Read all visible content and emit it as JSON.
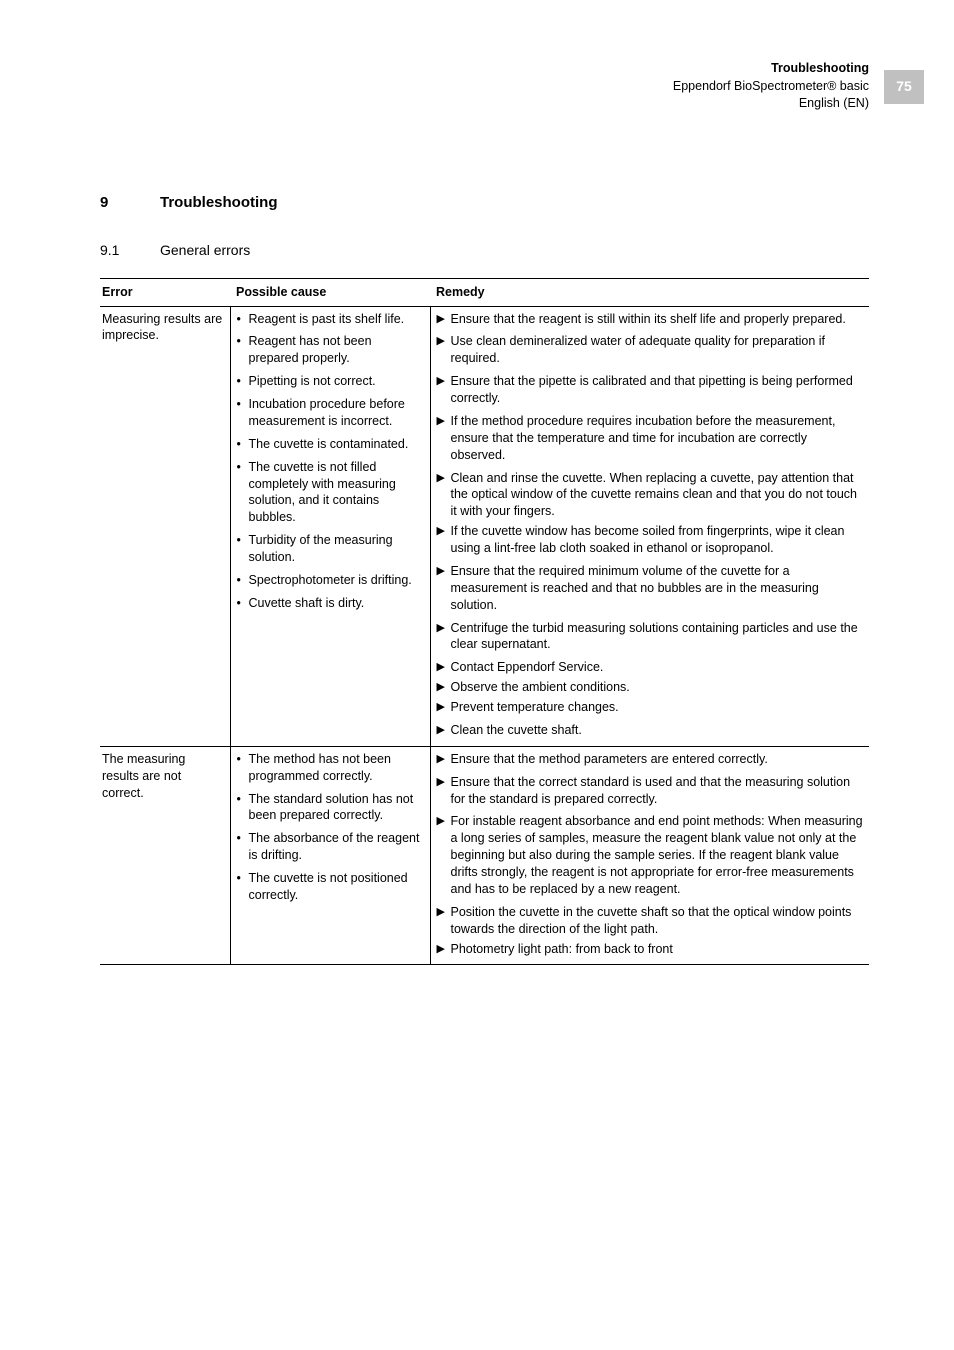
{
  "header": {
    "title": "Troubleshooting",
    "product": "Eppendorf BioSpectrometer® basic",
    "language": "English (EN)",
    "page_number": "75"
  },
  "section": {
    "number": "9",
    "title": "Troubleshooting"
  },
  "subsection": {
    "number": "9.1",
    "title": "General errors"
  },
  "table": {
    "headers": {
      "error": "Error",
      "cause": "Possible cause",
      "remedy": "Remedy"
    },
    "rows": [
      {
        "error": "Measuring results are imprecise.",
        "groups": [
          {
            "cause": "Reagent is past its shelf life.",
            "remedies": [
              "Ensure that the reagent is still within its shelf life and properly prepared."
            ]
          },
          {
            "cause": "Reagent has not been prepared properly.",
            "remedies": [
              "Use clean demineralized water of adequate quality for preparation if required."
            ]
          },
          {
            "cause": "Pipetting is not correct.",
            "remedies": [
              "Ensure that the pipette is calibrated and that pipetting is being performed correctly."
            ]
          },
          {
            "cause": "Incubation procedure before measurement is incorrect.",
            "remedies": [
              "If the method procedure requires incubation before the measurement, ensure that the temperature and time for incubation are correctly observed."
            ]
          },
          {
            "cause": "The cuvette is contaminated.",
            "remedies": [
              "Clean and rinse the cuvette. When replacing a cuvette, pay attention that the optical window of the cuvette remains clean and that you do not touch it with your fingers.",
              "If the cuvette window has become soiled from fingerprints, wipe it clean using a lint-free lab cloth soaked in ethanol or isopropanol."
            ]
          },
          {
            "cause": "The cuvette is not filled completely with measuring solution, and it contains bubbles.",
            "remedies": [
              "Ensure that the required minimum volume of the cuvette for a measurement is reached and that no bubbles are in the measuring solution."
            ]
          },
          {
            "cause": "Turbidity of the measuring solution.",
            "remedies": [
              "Centrifuge the turbid measuring solutions containing particles and use the clear supernatant."
            ]
          },
          {
            "cause": "Spectrophotometer is drifting.",
            "remedies": [
              "Contact Eppendorf Service.",
              "Observe the ambient conditions.",
              "Prevent temperature changes."
            ]
          },
          {
            "cause": "Cuvette shaft is dirty.",
            "remedies": [
              "Clean the cuvette shaft."
            ]
          }
        ]
      },
      {
        "error": "The measuring results are not correct.",
        "groups": [
          {
            "cause": "The method has not been programmed correctly.",
            "remedies": [
              "Ensure that the method parameters are entered correctly."
            ]
          },
          {
            "cause": "The standard solution has not been prepared correctly.",
            "remedies": [
              "Ensure that the correct standard is used and that the measuring solution for the standard is prepared correctly."
            ]
          },
          {
            "cause": "The absorbance of the reagent is drifting.",
            "remedies": [
              "For instable reagent absorbance and end point methods: When measuring a long series of samples, measure the reagent blank value not only at the beginning but also during the sample series. If the reagent blank value drifts strongly, the reagent is not appropriate for error-free measurements and has to be replaced by a new reagent."
            ]
          },
          {
            "cause": "The cuvette is not positioned correctly.",
            "remedies": [
              "Position the cuvette in the cuvette shaft so that the optical window points towards the direction of the light path.",
              "Photometry light path: from back to front"
            ]
          }
        ]
      }
    ]
  }
}
